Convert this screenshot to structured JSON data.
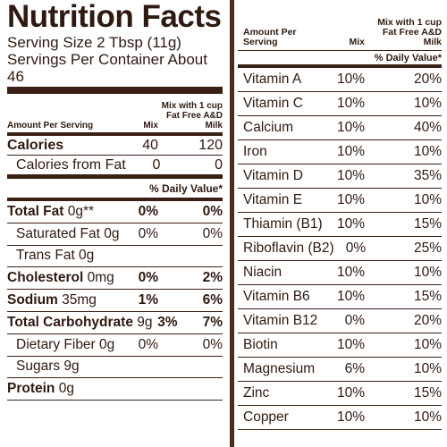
{
  "title": "Nutrition Facts",
  "serving_size": "Serving Size 2 Tbsp (11g)",
  "servings_per_container": "Servings Per Container About 46",
  "left_header": {
    "amount": "Amount Per Serving",
    "col1": "Mix",
    "col2": "Mix with 1 cup Fat Free A&D Milk"
  },
  "calories": {
    "label": "Calories",
    "mix": "40",
    "milk": "120"
  },
  "calories_fat": {
    "label": "Calories from Fat",
    "mix": "0",
    "milk": "0"
  },
  "daily_value_header": "% Daily Value*",
  "left_rows": [
    {
      "name": "Total Fat",
      "amt": "0g**",
      "mix": "0%",
      "milk": "0%"
    },
    {
      "name": "Saturated Fat",
      "amt": "0g",
      "mix": "0%",
      "milk": "0%"
    },
    {
      "name": "Trans Fat",
      "amt": "0g",
      "mix": "",
      "milk": ""
    },
    {
      "name": "Cholesterol",
      "amt": "0mg",
      "mix": "0%",
      "milk": "2%"
    },
    {
      "name": "Sodium",
      "amt": "35mg",
      "mix": "1%",
      "milk": "6%"
    },
    {
      "name": "Total Carbohydrate",
      "amt": "9g",
      "mix": "3%",
      "milk": "7%"
    },
    {
      "name": "Dietary Fiber",
      "amt": "0g",
      "mix": "0%",
      "milk": "0%"
    },
    {
      "name": "Sugars",
      "amt": "9g",
      "mix": "",
      "milk": ""
    },
    {
      "name": "Protein",
      "amt": "0g",
      "mix": "",
      "milk": ""
    }
  ],
  "right_header": {
    "amount": "Amount Per Serving",
    "col1": "Mix",
    "col2": "Mix with 1 cup Fat Free A&D Milk"
  },
  "right_dv_header": "% Daily Value*",
  "vitamins": [
    {
      "name": "Vitamin A",
      "mix": "10%",
      "milk": "20%"
    },
    {
      "name": "Vitamin C",
      "mix": "10%",
      "milk": "10%"
    },
    {
      "name": "Calcium",
      "mix": "10%",
      "milk": "40%"
    },
    {
      "name": "Iron",
      "mix": "10%",
      "milk": "10%"
    },
    {
      "name": "Vitamin D",
      "mix": "10%",
      "milk": "35%"
    },
    {
      "name": "Vitamin E",
      "mix": "10%",
      "milk": "10%"
    },
    {
      "name": "Thiamin (B1)",
      "mix": "10%",
      "milk": "15%"
    },
    {
      "name": "Riboflavin (B2)",
      "mix": "0%",
      "milk": "25%"
    },
    {
      "name": "Niacin",
      "mix": "10%",
      "milk": "10%"
    },
    {
      "name": "Vitamin B6",
      "mix": "10%",
      "milk": "15%"
    },
    {
      "name": "Vitamin B12",
      "mix": "0%",
      "milk": "20%"
    },
    {
      "name": "Biotin",
      "mix": "10%",
      "milk": "10%"
    },
    {
      "name": "Magnesium",
      "mix": "6%",
      "milk": "10%"
    },
    {
      "name": "Zinc",
      "mix": "10%",
      "milk": "15%"
    },
    {
      "name": "Copper",
      "mix": "10%",
      "milk": "10%"
    }
  ]
}
